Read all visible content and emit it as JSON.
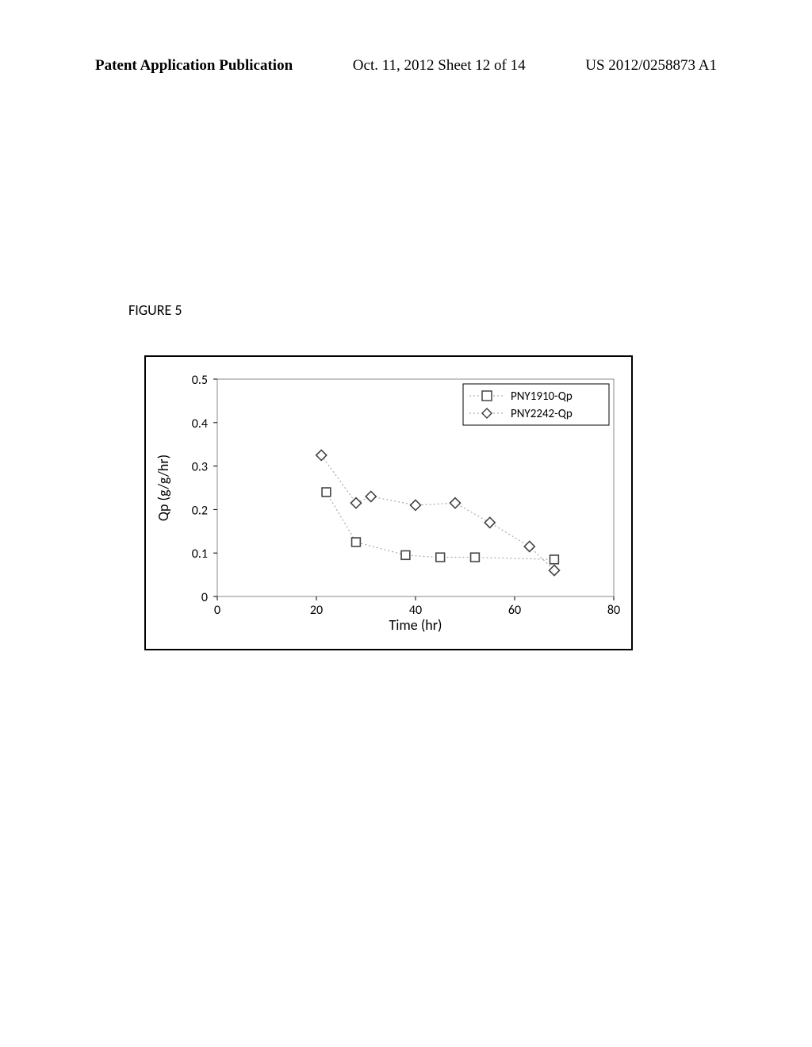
{
  "header": {
    "left": "Patent Application Publication",
    "center": "Oct. 11, 2012  Sheet 12 of 14",
    "right": "US 2012/0258873 A1"
  },
  "figure_label": "FIGURE 5",
  "chart": {
    "type": "scatter",
    "xlabel": "Time (hr)",
    "ylabel": "Qp (g/g/hr)",
    "xlim": [
      0,
      80
    ],
    "ylim": [
      0,
      0.5
    ],
    "xticks": [
      0,
      20,
      40,
      60,
      80
    ],
    "yticks": [
      0,
      0.1,
      0.2,
      0.3,
      0.4,
      0.5
    ],
    "background_color": "#ffffff",
    "axis_color": "#888888",
    "tick_font_size": 16,
    "label_font_size": 18,
    "legend": {
      "items": [
        "PNY1910-Qp",
        "PNY2242-Qp"
      ],
      "position": "top-right",
      "border_color": "#000",
      "font_size": 15
    },
    "series": [
      {
        "name": "PNY1910-Qp",
        "marker": "square",
        "marker_color": "#444444",
        "marker_size": 12,
        "line_style": "dotted",
        "line_color": "#999999",
        "x": [
          22,
          28,
          38,
          45,
          52,
          68
        ],
        "y": [
          0.24,
          0.125,
          0.095,
          0.09,
          0.09,
          0.085
        ]
      },
      {
        "name": "PNY2242-Qp",
        "marker": "diamond",
        "marker_color": "#444444",
        "marker_size": 13,
        "line_style": "dotted",
        "line_color": "#999999",
        "x": [
          21,
          28,
          31,
          40,
          48,
          55,
          63,
          68
        ],
        "y": [
          0.325,
          0.215,
          0.23,
          0.21,
          0.215,
          0.17,
          0.115,
          0.06
        ]
      }
    ]
  }
}
